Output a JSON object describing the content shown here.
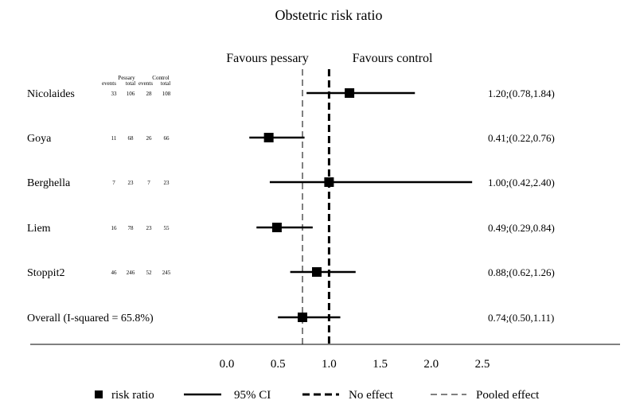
{
  "chart_data": {
    "type": "forest",
    "title": "Obstetric risk ratio",
    "favours_left": "Favours pessary",
    "favours_right": "Favours control",
    "group_headers": {
      "pessary": "Pessary",
      "control": "Control"
    },
    "column_headers": [
      "events",
      "total",
      "events",
      "total"
    ],
    "studies": [
      {
        "name": "Nicolaides",
        "pessary_events": "33",
        "pessary_total": "106",
        "control_events": "28",
        "control_total": "108",
        "rr": 1.2,
        "lo": 0.78,
        "hi": 1.84,
        "ci_text": "1.20;(0.78,1.84)"
      },
      {
        "name": "Goya",
        "pessary_events": "11",
        "pessary_total": "68",
        "control_events": "26",
        "control_total": "66",
        "rr": 0.41,
        "lo": 0.22,
        "hi": 0.76,
        "ci_text": "0.41;(0.22,0.76)"
      },
      {
        "name": "Berghella",
        "pessary_events": "7",
        "pessary_total": "23",
        "control_events": "7",
        "control_total": "23",
        "rr": 1.0,
        "lo": 0.42,
        "hi": 2.4,
        "ci_text": "1.00;(0.42,2.40)"
      },
      {
        "name": "Liem",
        "pessary_events": "16",
        "pessary_total": "78",
        "control_events": "23",
        "control_total": "55",
        "rr": 0.49,
        "lo": 0.29,
        "hi": 0.84,
        "ci_text": "0.49;(0.29,0.84)"
      },
      {
        "name": "Stoppit2",
        "pessary_events": "46",
        "pessary_total": "246",
        "control_events": "52",
        "control_total": "245",
        "rr": 0.88,
        "lo": 0.62,
        "hi": 1.26,
        "ci_text": "0.88;(0.62,1.26)"
      }
    ],
    "overall": {
      "name": "Overall (I-squared = 65.8%)",
      "rr": 0.74,
      "lo": 0.5,
      "hi": 1.11,
      "ci_text": "0.74;(0.50,1.11)"
    },
    "no_effect_value": 1.0,
    "pooled_value": 0.74,
    "xlim": [
      0.0,
      2.5
    ],
    "x_ticks": [
      "0.0",
      "0.5",
      "1.0",
      "1.5",
      "2.0",
      "2.5"
    ],
    "legend": [
      {
        "symbol": "square",
        "label": "risk ratio"
      },
      {
        "symbol": "solid-line",
        "label": "95% CI"
      },
      {
        "symbol": "bold-dash",
        "label": "No effect"
      },
      {
        "symbol": "thin-dash",
        "label": "Pooled effect"
      }
    ]
  }
}
